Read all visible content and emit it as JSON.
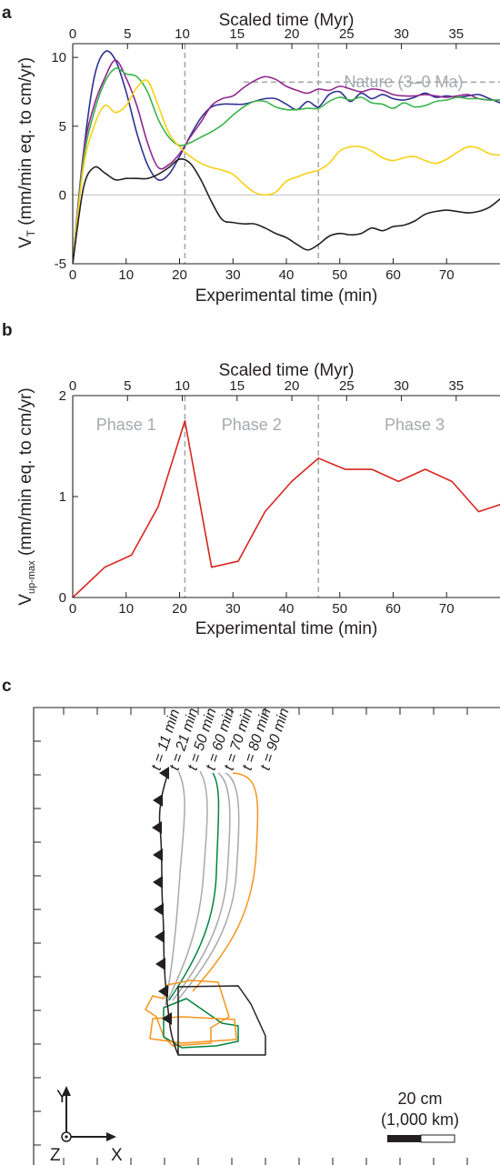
{
  "panels": {
    "a": {
      "letter": "a"
    },
    "b": {
      "letter": "b"
    },
    "c": {
      "letter": "c"
    }
  },
  "chart_data": [
    {
      "id": "a",
      "type": "line",
      "xlabel": "Experimental time (min)",
      "x2label": "Scaled time (Myr)",
      "ylabel": "V_T (mm/min eq. to cm/yr)",
      "ylabel_main": "V",
      "ylabel_sub": "T",
      "ylabel_rest": " (mm/min eq. to cm/yr)",
      "xlim": [
        0,
        80
      ],
      "ylim": [
        -5,
        11
      ],
      "xticks": [
        0,
        10,
        20,
        30,
        40,
        50,
        60,
        70
      ],
      "x2ticks": [
        0,
        5,
        10,
        15,
        20,
        25,
        30,
        35
      ],
      "yticks": [
        -5,
        0,
        5,
        10
      ],
      "vlines": [
        21,
        46
      ],
      "annotation": {
        "text": "Nature (3–0 Ma)",
        "value": 8.2,
        "x_start": 32,
        "x_end": 80
      },
      "series": [
        {
          "color": "#2e3192",
          "x": [
            0,
            2,
            4,
            6,
            8,
            10,
            12,
            14,
            16,
            18,
            20,
            22,
            24,
            26,
            28,
            30,
            32,
            34,
            36,
            38,
            40,
            42,
            44,
            46,
            48,
            50,
            52,
            54,
            56,
            58,
            60,
            62,
            64,
            66,
            68,
            70,
            72,
            74,
            76,
            78,
            80
          ],
          "y": [
            -5,
            3,
            8.5,
            10.4,
            9.8,
            7.5,
            4.5,
            2.2,
            1.1,
            1.5,
            2.8,
            4.3,
            5.6,
            6.4,
            6.6,
            6.6,
            6.6,
            6.8,
            7,
            7,
            6.6,
            6.2,
            6.8,
            6.4,
            7.3,
            7.5,
            6.8,
            7.4,
            7,
            7.3,
            7,
            6.9,
            7.1,
            7.4,
            7.1,
            7.2,
            7.1,
            7.2,
            7.3,
            7,
            6.7
          ]
        },
        {
          "color": "#92278f",
          "x": [
            0,
            2,
            4,
            6,
            8,
            10,
            12,
            14,
            16,
            18,
            20,
            22,
            24,
            26,
            28,
            30,
            32,
            34,
            36,
            38,
            40,
            42,
            44,
            46,
            48,
            50,
            52,
            54,
            56,
            58,
            60,
            62,
            64,
            66,
            68,
            70,
            72,
            74,
            76,
            78,
            80
          ],
          "y": [
            -5,
            3,
            6.5,
            8.5,
            9.8,
            8.5,
            6.5,
            3.8,
            2,
            2.2,
            3,
            4.2,
            5.3,
            6.5,
            7,
            7.2,
            7.8,
            8.3,
            8.6,
            8.4,
            7.9,
            7.6,
            7.4,
            7.7,
            7.6,
            7.9,
            7.7,
            7.5,
            7.7,
            7.6,
            7.3,
            7.2,
            7.2,
            7.3,
            7.2,
            7.1,
            7.2,
            7.3,
            7,
            6.9,
            6.9
          ]
        },
        {
          "color": "#39b54a",
          "x": [
            0,
            2,
            4,
            6,
            8,
            10,
            12,
            14,
            16,
            18,
            20,
            22,
            24,
            26,
            28,
            30,
            32,
            34,
            36,
            38,
            40,
            42,
            44,
            46,
            48,
            50,
            52,
            54,
            56,
            58,
            60,
            62,
            64,
            66,
            68,
            70,
            72,
            74,
            76,
            78,
            80
          ],
          "y": [
            -5,
            2.5,
            6,
            8.2,
            9.2,
            8.8,
            8.6,
            7.5,
            5.5,
            4.2,
            3.6,
            3.8,
            4.2,
            4.6,
            5.1,
            5.8,
            6.4,
            6.8,
            6.8,
            6.4,
            6.2,
            6.2,
            6.3,
            6.3,
            6.8,
            7.1,
            6.9,
            7.1,
            6.7,
            6.6,
            6.3,
            6.7,
            6.4,
            6.5,
            6.8,
            6.9,
            7.1,
            7,
            7,
            6.9,
            6.9
          ]
        },
        {
          "color": "#f7d117",
          "x": [
            0,
            2,
            4,
            6,
            8,
            10,
            12,
            14,
            16,
            18,
            20,
            22,
            24,
            26,
            28,
            30,
            32,
            34,
            36,
            38,
            40,
            42,
            44,
            46,
            48,
            50,
            52,
            54,
            56,
            58,
            60,
            62,
            64,
            66,
            68,
            70,
            72,
            74,
            76,
            78,
            80
          ],
          "y": [
            -5,
            2,
            5,
            6.5,
            6,
            6.5,
            7.8,
            8.3,
            6.5,
            4.5,
            3.5,
            2.8,
            2.3,
            2,
            1.8,
            1.5,
            0.8,
            0.2,
            0,
            0.2,
            1,
            1.3,
            1.6,
            1.8,
            2.3,
            3.2,
            3.5,
            3.5,
            3.2,
            2.7,
            2.5,
            2.7,
            2.8,
            2.5,
            2.3,
            2.6,
            3.1,
            3.5,
            3.4,
            3,
            2.9
          ]
        },
        {
          "color": "#231f20",
          "x": [
            0,
            2,
            4,
            6,
            8,
            10,
            12,
            14,
            16,
            18,
            20,
            22,
            24,
            26,
            28,
            30,
            32,
            34,
            36,
            38,
            40,
            42,
            44,
            46,
            48,
            50,
            52,
            54,
            56,
            58,
            60,
            62,
            64,
            66,
            68,
            70,
            72,
            74,
            76,
            78,
            80
          ],
          "y": [
            -5,
            0.5,
            2,
            1.6,
            1.1,
            1.2,
            1.2,
            1.2,
            1.5,
            2,
            2.6,
            2.3,
            1.1,
            -0.5,
            -1.8,
            -2,
            -2.1,
            -2.1,
            -2.4,
            -2.8,
            -3.1,
            -3.6,
            -4,
            -3.6,
            -3,
            -2.8,
            -2.9,
            -2.8,
            -2.4,
            -2.6,
            -2.3,
            -2.2,
            -1.9,
            -1.4,
            -1.2,
            -1.1,
            -1.2,
            -1.3,
            -1.2,
            -0.9,
            -0.3
          ]
        }
      ]
    },
    {
      "id": "b",
      "type": "line",
      "xlabel": "Experimental time (min)",
      "x2label": "Scaled time (Myr)",
      "ylabel": "V_up-max (mm/min eq. to cm/yr)",
      "ylabel_main": "V",
      "ylabel_sub": "up-max",
      "ylabel_rest": " (mm/min eq. to cm/yr)",
      "xlim": [
        0,
        80
      ],
      "ylim": [
        0,
        2
      ],
      "xticks": [
        0,
        10,
        20,
        30,
        40,
        50,
        60,
        70
      ],
      "x2ticks": [
        0,
        5,
        10,
        15,
        20,
        25,
        30,
        35
      ],
      "yticks": [
        0,
        1,
        2
      ],
      "vlines": [
        21,
        46
      ],
      "phases": [
        {
          "label": "Phase 1",
          "x": 10
        },
        {
          "label": "Phase 2",
          "x": 33.5
        },
        {
          "label": "Phase 3",
          "x": 64
        }
      ],
      "series": [
        {
          "color": "#d7261e",
          "x": [
            0,
            6,
            11,
            16,
            21,
            26,
            31,
            36,
            41,
            46,
            51,
            56,
            61,
            66,
            71,
            76,
            80
          ],
          "y": [
            0,
            0.3,
            0.42,
            0.9,
            1.75,
            0.3,
            0.36,
            0.85,
            1.15,
            1.38,
            1.27,
            1.27,
            1.15,
            1.27,
            1.15,
            0.85,
            0.92
          ]
        }
      ]
    }
  ],
  "panel_c": {
    "time_labels": [
      {
        "label": "t = 11 min",
        "color": "#231f20"
      },
      {
        "label": "t = 21 min",
        "color": "#a7a9ac"
      },
      {
        "label": "t = 50 min",
        "color": "#a7a9ac"
      },
      {
        "label": "t = 60 min",
        "color": "#00843d"
      },
      {
        "label": "t = 70 min",
        "color": "#a7a9ac"
      },
      {
        "label": "t = 80 min",
        "color": "#a7a9ac"
      },
      {
        "label": "t = 90 min",
        "color": "#f7941d"
      }
    ],
    "axes": {
      "y_label": "Y",
      "x_label": "X",
      "z_label": "Z"
    },
    "scale_bar": {
      "line1": "20 cm",
      "line2": "(1,000 km)"
    }
  }
}
